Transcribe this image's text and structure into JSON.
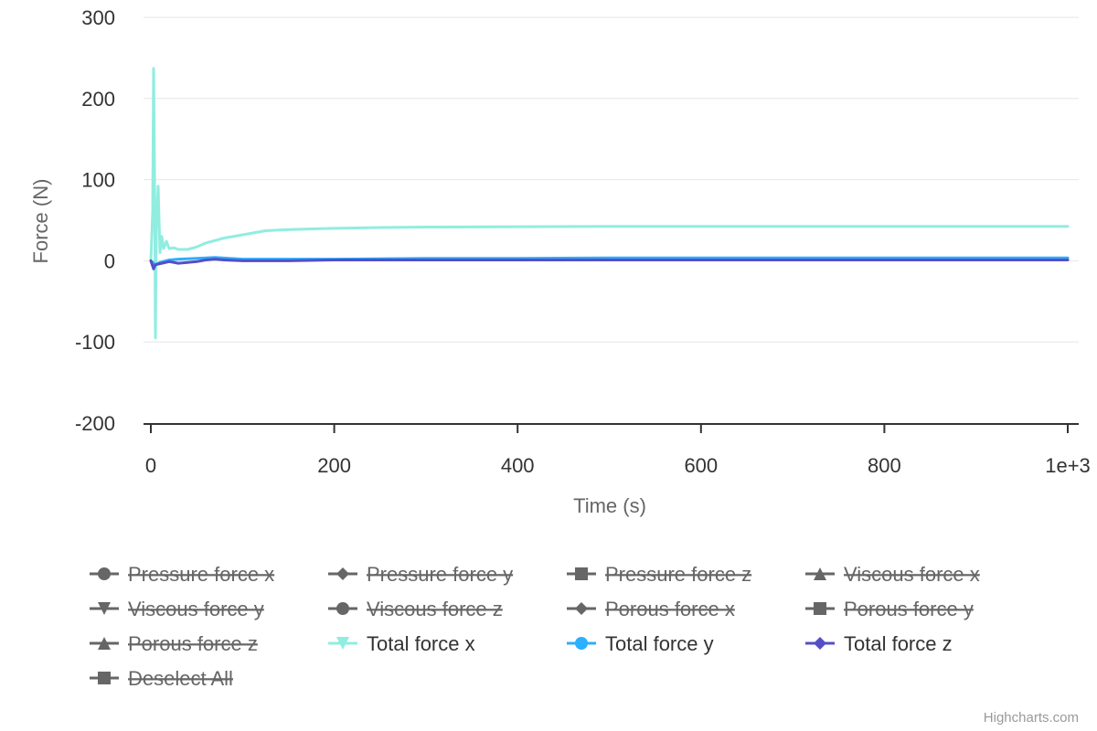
{
  "chart_data": {
    "type": "line",
    "title": "",
    "xlabel": "Time (s)",
    "ylabel": "Force (N)",
    "xlim": [
      0,
      1000
    ],
    "ylim": [
      -200,
      300
    ],
    "x_ticks": [
      0,
      200,
      400,
      600,
      800,
      1000
    ],
    "x_tick_labels": [
      "0",
      "200",
      "400",
      "600",
      "800",
      "1e+3"
    ],
    "y_ticks": [
      -200,
      -100,
      0,
      100,
      200,
      300
    ],
    "y_tick_labels": [
      "-200",
      "-100",
      "0",
      "100",
      "200",
      "300"
    ],
    "grid": "horizontal",
    "legend_position": "bottom",
    "series": [
      {
        "name": "Pressure force x",
        "visible": false,
        "marker": "circle",
        "color": "#666666",
        "points": []
      },
      {
        "name": "Pressure force y",
        "visible": false,
        "marker": "diamond",
        "color": "#666666",
        "points": []
      },
      {
        "name": "Pressure force z",
        "visible": false,
        "marker": "square",
        "color": "#666666",
        "points": []
      },
      {
        "name": "Viscous force x",
        "visible": false,
        "marker": "triangle",
        "color": "#666666",
        "points": []
      },
      {
        "name": "Viscous force y",
        "visible": false,
        "marker": "triangle-down",
        "color": "#666666",
        "points": []
      },
      {
        "name": "Viscous force z",
        "visible": false,
        "marker": "circle",
        "color": "#666666",
        "points": []
      },
      {
        "name": "Porous force x",
        "visible": false,
        "marker": "diamond",
        "color": "#666666",
        "points": []
      },
      {
        "name": "Porous force y",
        "visible": false,
        "marker": "square",
        "color": "#666666",
        "points": []
      },
      {
        "name": "Porous force z",
        "visible": false,
        "marker": "triangle",
        "color": "#666666",
        "points": []
      },
      {
        "name": "Total force x",
        "visible": true,
        "marker": "triangle-down",
        "color": "#90ede0",
        "points": [
          [
            0,
            0
          ],
          [
            2,
            60
          ],
          [
            3,
            237
          ],
          [
            4,
            120
          ],
          [
            5,
            -95
          ],
          [
            6,
            40
          ],
          [
            8,
            92
          ],
          [
            10,
            10
          ],
          [
            12,
            30
          ],
          [
            14,
            15
          ],
          [
            17,
            24
          ],
          [
            20,
            15
          ],
          [
            25,
            16
          ],
          [
            30,
            14
          ],
          [
            40,
            14
          ],
          [
            50,
            17
          ],
          [
            60,
            22
          ],
          [
            80,
            28
          ],
          [
            100,
            32
          ],
          [
            125,
            37
          ],
          [
            150,
            38.5
          ],
          [
            200,
            40
          ],
          [
            250,
            41
          ],
          [
            300,
            41.5
          ],
          [
            400,
            42
          ],
          [
            500,
            42.3
          ],
          [
            600,
            42.4
          ],
          [
            700,
            42.5
          ],
          [
            800,
            42.5
          ],
          [
            900,
            42.5
          ],
          [
            1000,
            42.5
          ]
        ]
      },
      {
        "name": "Total force y",
        "visible": true,
        "marker": "circle",
        "color": "#2caffe",
        "points": [
          [
            0,
            0
          ],
          [
            5,
            -5
          ],
          [
            10,
            -2
          ],
          [
            20,
            1
          ],
          [
            30,
            2
          ],
          [
            50,
            3
          ],
          [
            70,
            4
          ],
          [
            100,
            2
          ],
          [
            150,
            2
          ],
          [
            200,
            2
          ],
          [
            300,
            3
          ],
          [
            400,
            3
          ],
          [
            500,
            3.5
          ],
          [
            600,
            3.5
          ],
          [
            700,
            3.5
          ],
          [
            800,
            3.5
          ],
          [
            900,
            3.5
          ],
          [
            1000,
            3.5
          ]
        ]
      },
      {
        "name": "Total force z",
        "visible": true,
        "marker": "diamond",
        "color": "#544fc5",
        "points": [
          [
            0,
            0
          ],
          [
            3,
            -10
          ],
          [
            5,
            -5
          ],
          [
            8,
            -4
          ],
          [
            12,
            -3
          ],
          [
            20,
            -1
          ],
          [
            30,
            -3
          ],
          [
            40,
            -2
          ],
          [
            50,
            -1
          ],
          [
            60,
            1
          ],
          [
            70,
            2
          ],
          [
            80,
            1
          ],
          [
            100,
            0
          ],
          [
            150,
            0
          ],
          [
            200,
            1
          ],
          [
            300,
            1
          ],
          [
            400,
            1
          ],
          [
            500,
            1
          ],
          [
            600,
            1
          ],
          [
            700,
            1
          ],
          [
            800,
            1
          ],
          [
            900,
            1
          ],
          [
            1000,
            1
          ]
        ]
      }
    ]
  },
  "legend": {
    "deselect_all": "Deselect All"
  },
  "credits": "Highcharts.com"
}
